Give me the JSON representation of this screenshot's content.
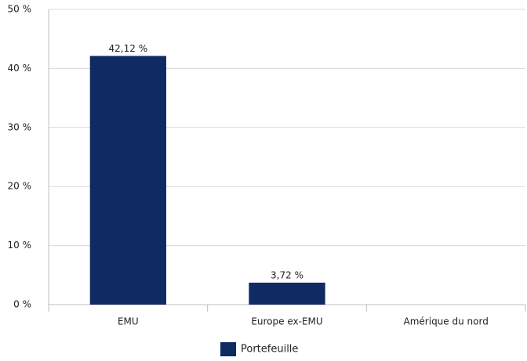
{
  "chart_data": {
    "type": "bar",
    "categories": [
      "EMU",
      "Europe ex-EMU",
      "Amérique du nord"
    ],
    "series": [
      {
        "name": "Portefeuille",
        "color": "#102a63",
        "values": [
          42.12,
          3.72,
          null
        ],
        "value_labels": [
          "42,12 %",
          "3,72 %",
          null
        ]
      }
    ],
    "ylim": [
      0,
      50
    ],
    "yticks": [
      {
        "value": 0,
        "label": "0 %"
      },
      {
        "value": 10,
        "label": "10 %"
      },
      {
        "value": 20,
        "label": "20 %"
      },
      {
        "value": 30,
        "label": "30 %"
      },
      {
        "value": 40,
        "label": "40 %"
      },
      {
        "value": 50,
        "label": "50 %"
      }
    ],
    "grid": true,
    "legend": "bottom"
  }
}
